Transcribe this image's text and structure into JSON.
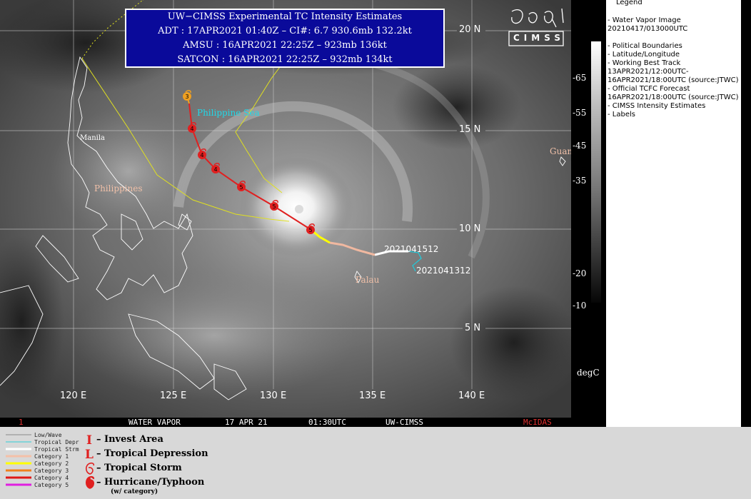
{
  "info_box": {
    "title": "UW−CIMSS Experimental TC Intensity Estimates",
    "adt": "ADT : 17APR2021 01:40Z –  CI#: 6.7   930.6mb   132.2kt",
    "amsu": "AMSU : 16APR2021 22:25Z –  923mb   136kt",
    "satcon": "SATCON : 16APR2021 22:25Z –  932mb   134kt"
  },
  "map": {
    "lat_labels": [
      "20 N",
      "15 N",
      "10 N",
      "5 N"
    ],
    "lon_labels": [
      "120 E",
      "125 E",
      "130 E",
      "135 E",
      "140 E"
    ],
    "place_labels": {
      "philippine_sea": "Philippine Sea",
      "manila": "Manila",
      "philippines": "Philippines",
      "palau": "Palau",
      "guam": "Guam"
    },
    "track_labels": {
      "start_a": "2021041512",
      "start_b": "2021041312"
    },
    "track_colors": {
      "tropical_depr": "#22c8d8",
      "tropical_strm": "#ffffff",
      "category_1": "#f0b8a0",
      "category_2": "#ffff00",
      "forecast": "#e02020",
      "forecast_early": "#f0a020",
      "working_best_track": "#ffff40"
    },
    "forecast_symbols": [
      "3",
      "4",
      "4",
      "4",
      "5",
      "5",
      "5"
    ]
  },
  "colorbar": {
    "ticks": [
      "-65",
      "-55",
      "-45",
      "-35",
      "-20",
      "-10"
    ],
    "unit": "degC"
  },
  "legend_panel": {
    "title": "Legend",
    "lines": [
      "-  Water Vapor Image",
      "20210417/013000UTC",
      "",
      "-  Political Boundaries",
      "-  Latitude/Longitude",
      "-  Working Best Track",
      "13APR2021/12:00UTC-",
      "16APR2021/18:00UTC   (source:JTWC)",
      "-  Official TCFC Forecast",
      "16APR2021/18:00UTC  (source:JTWC)",
      "-  CIMSS Intensity Estimates",
      "-  Labels"
    ]
  },
  "status_bar": {
    "frame": "1",
    "channel": "WATER VAPOR",
    "date": "17 APR 21",
    "time": "01:30UTC",
    "source": "UW-CIMSS",
    "software": "McIDAS"
  },
  "bottom_legend": {
    "categories": [
      {
        "label": "Low/Wave",
        "color": "#8a8a8a"
      },
      {
        "label": "Tropical Depr",
        "color": "#30d0d8"
      },
      {
        "label": "Tropical Strm",
        "color": "#ffffff"
      },
      {
        "label": "Category 1",
        "color": "#f4c0a8"
      },
      {
        "label": "Category 2",
        "color": "#ffff00"
      },
      {
        "label": "Category 3",
        "color": "#f08020"
      },
      {
        "label": "Category 4",
        "color": "#e01818"
      },
      {
        "label": "Category 5",
        "color": "#e020e0"
      }
    ],
    "symbols": [
      {
        "glyph": "I",
        "label": "– Invest Area"
      },
      {
        "glyph": "L",
        "label": "– Tropical Depression"
      },
      {
        "glyph": "6",
        "label": "– Tropical Storm"
      },
      {
        "glyph": "9",
        "label": "– Hurricane/Typhoon"
      }
    ],
    "note": "(w/ category)"
  },
  "logo_text": "CIMSS"
}
